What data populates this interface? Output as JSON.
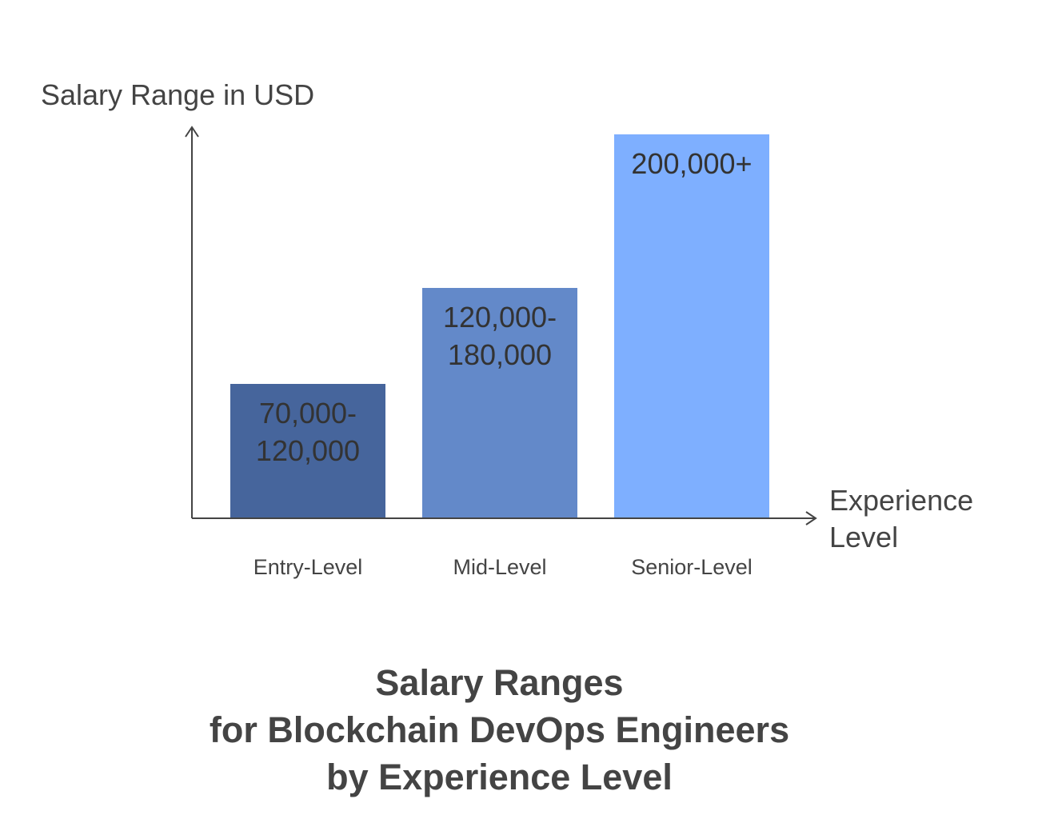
{
  "chart_data": {
    "type": "bar",
    "title": "Salary Ranges\nfor Blockchain DevOps Engineers\nby Experience Level",
    "xlabel": "Experience Level",
    "ylabel": "Salary Range in USD",
    "categories": [
      "Entry-Level",
      "Mid-Level",
      "Senior-Level"
    ],
    "bar_labels": [
      "70,000-\n120,000",
      "120,000-\n180,000",
      "200,000+"
    ],
    "ranges": [
      {
        "min": 70000,
        "max": 120000
      },
      {
        "min": 120000,
        "max": 180000
      },
      {
        "min": 200000,
        "max": null
      }
    ],
    "relative_heights": [
      0.35,
      0.6,
      1.0
    ],
    "colors": [
      "#46659c",
      "#6389c9",
      "#7eafff"
    ],
    "axis_color": "#444444",
    "grid": false,
    "legend": "none"
  }
}
